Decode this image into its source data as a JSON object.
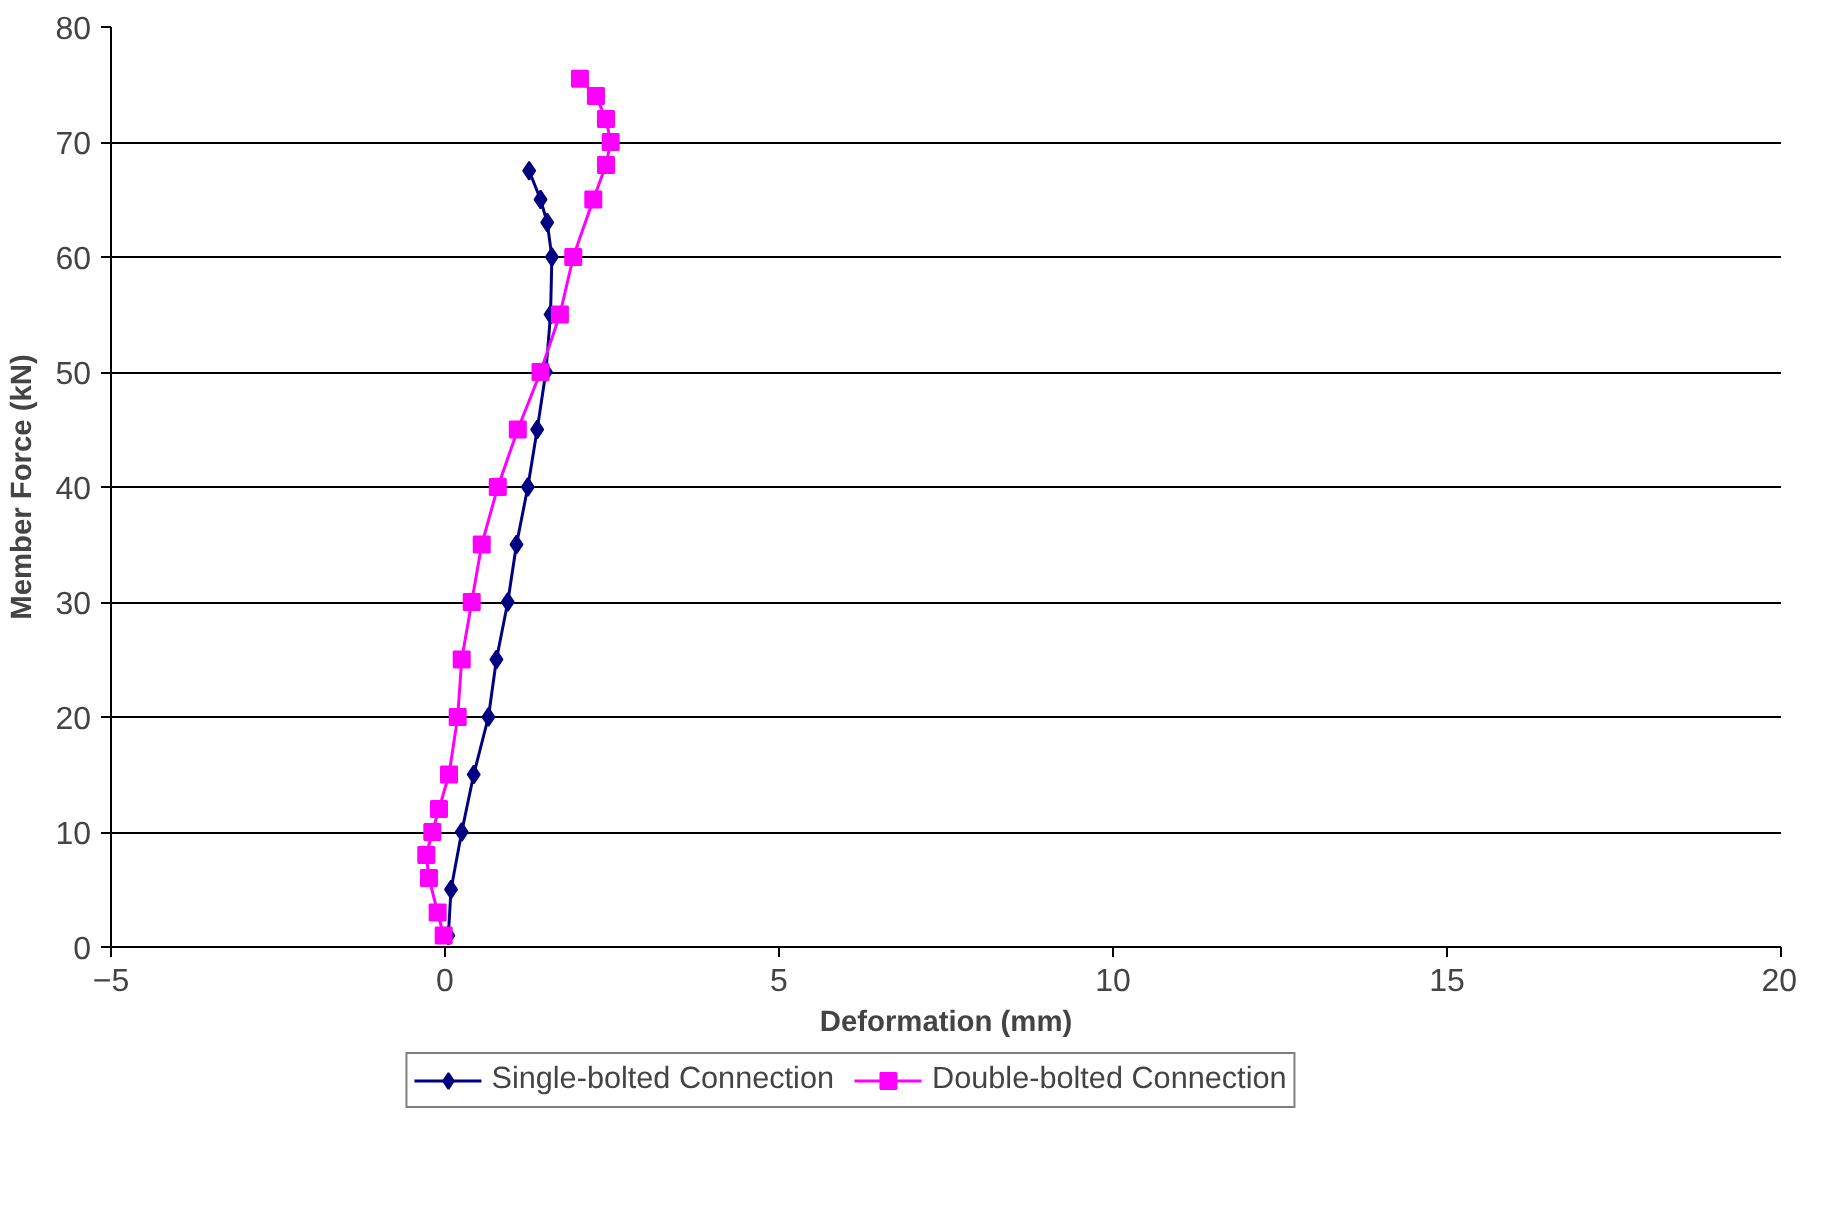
{
  "chart_data": {
    "type": "line",
    "xlabel": "Deformation (mm)",
    "ylabel": "Member Force (kN)",
    "xlim": [
      -5,
      20
    ],
    "xticks": [
      -5,
      0,
      5,
      10,
      15,
      20
    ],
    "ylim": [
      0,
      80
    ],
    "yticks": [
      0,
      10,
      20,
      30,
      40,
      50,
      60,
      70,
      80
    ],
    "grid": "y",
    "legend": "bottom",
    "line_style": "solid",
    "series": [
      {
        "name": "Single-bolted Connection",
        "color": "#000080",
        "marker": "diamond",
        "x": [
          0.05,
          0.09,
          0.25,
          0.43,
          0.65,
          0.77,
          0.94,
          1.07,
          1.24,
          1.38,
          1.51,
          1.58,
          1.6,
          1.53,
          1.43,
          1.26
        ],
        "values": [
          1,
          5,
          10,
          15,
          20,
          25,
          30,
          35,
          40,
          45,
          50,
          55,
          60,
          63,
          65,
          67.5
        ]
      },
      {
        "name": "Double-bolted Connection",
        "color": "#ff00ff",
        "marker": "square",
        "x": [
          -0.02,
          -0.11,
          -0.24,
          -0.28,
          -0.19,
          -0.09,
          0.06,
          0.19,
          0.25,
          0.4,
          0.55,
          0.79,
          1.09,
          1.43,
          1.72,
          1.92,
          2.22,
          2.41,
          2.48,
          2.41,
          2.26,
          2.02
        ],
        "values": [
          1,
          3,
          6,
          8,
          10,
          12,
          15,
          20,
          25,
          30,
          35,
          40,
          45,
          50,
          55,
          60,
          65,
          68,
          70,
          72,
          74,
          75.5
        ]
      }
    ]
  }
}
